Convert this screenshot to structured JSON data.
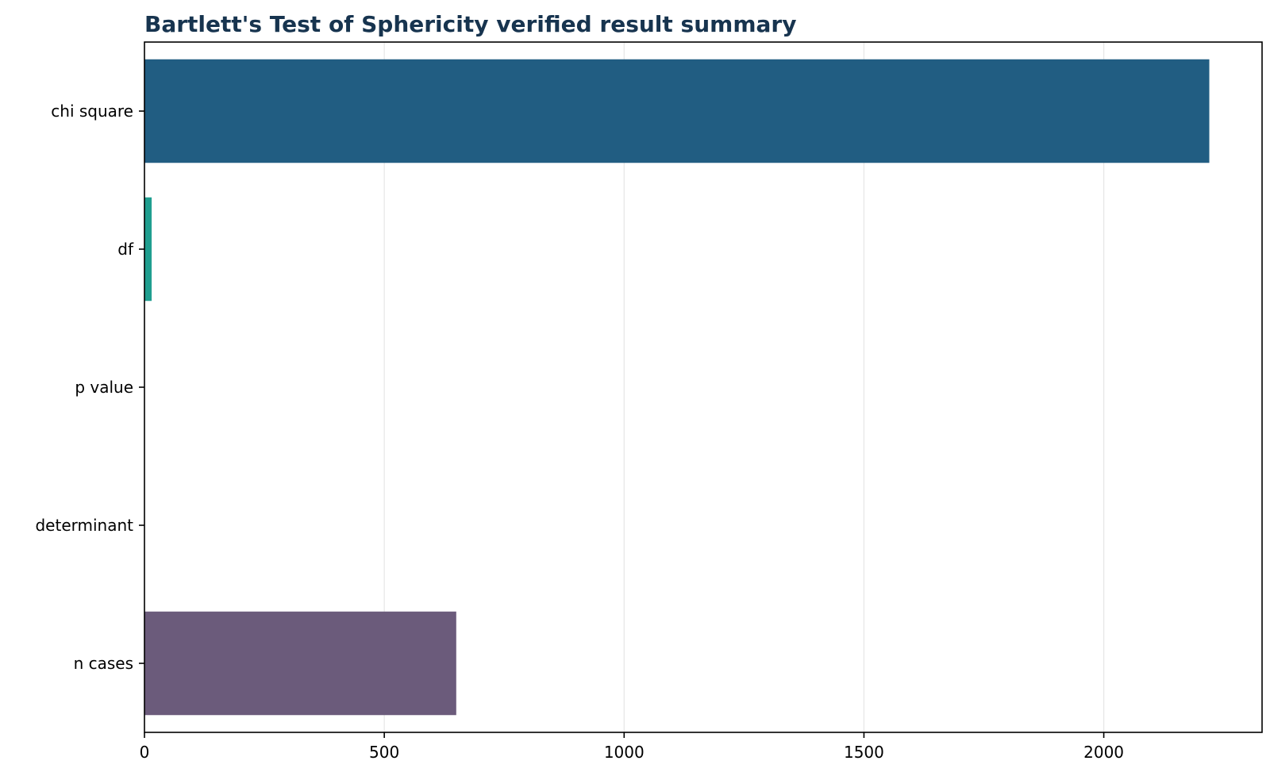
{
  "chart_data": {
    "type": "bar",
    "orientation": "horizontal",
    "title": "Bartlett's Test of Sphericity verified result summary",
    "xlabel": "",
    "ylabel": "",
    "categories": [
      "chi square",
      "df",
      "p value",
      "determinant",
      "n cases"
    ],
    "values": [
      2220,
      15,
      0,
      0,
      650
    ],
    "colors": [
      "#215d82",
      "#1f9e8f",
      "#3b2a61",
      "#e0c65a",
      "#6b5b7b"
    ],
    "xlim": [
      0,
      2330
    ],
    "xticks": [
      0,
      500,
      1000,
      1500,
      2000
    ],
    "xtick_labels": [
      "0",
      "500",
      "1000",
      "1500",
      "2000"
    ],
    "grid": "x-axis vertical gridlines on",
    "legend": "none"
  }
}
